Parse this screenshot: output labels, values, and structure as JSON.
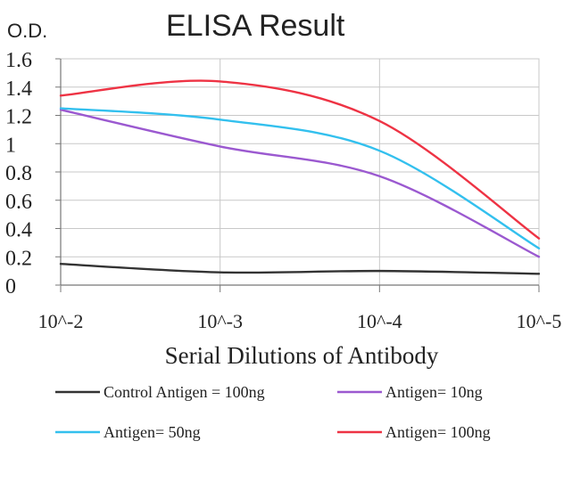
{
  "chart_data": {
    "type": "line",
    "title": "ELISA Result",
    "ylabel": "O.D.",
    "xlabel": "Serial Dilutions of Antibody",
    "categories": [
      "10^-2",
      "10^-3",
      "10^-4",
      "10^-5"
    ],
    "ylim": [
      0,
      1.6
    ],
    "yticks": [
      "0",
      "0.2",
      "0.4",
      "0.6",
      "0.8",
      "1",
      "1.2",
      "1.4",
      "1.6"
    ],
    "grid": true,
    "legend_position": "bottom",
    "series": [
      {
        "name": "Control Antigen = 100ng",
        "color": "#333333",
        "x": [
          0,
          1,
          2,
          3
        ],
        "values": [
          0.15,
          0.09,
          0.1,
          0.08
        ]
      },
      {
        "name": "Antigen= 10ng",
        "color": "#9b59d0",
        "x": [
          0,
          1,
          2,
          3
        ],
        "values": [
          1.24,
          0.98,
          0.77,
          0.2
        ]
      },
      {
        "name": "Antigen= 50ng",
        "color": "#33c0ee",
        "x": [
          0,
          1,
          2,
          3
        ],
        "values": [
          1.25,
          1.17,
          0.95,
          0.26
        ]
      },
      {
        "name": "Antigen= 100ng",
        "color": "#ee3344",
        "x": [
          0,
          1,
          2,
          3
        ],
        "values": [
          1.34,
          1.44,
          1.16,
          0.33
        ]
      }
    ]
  }
}
